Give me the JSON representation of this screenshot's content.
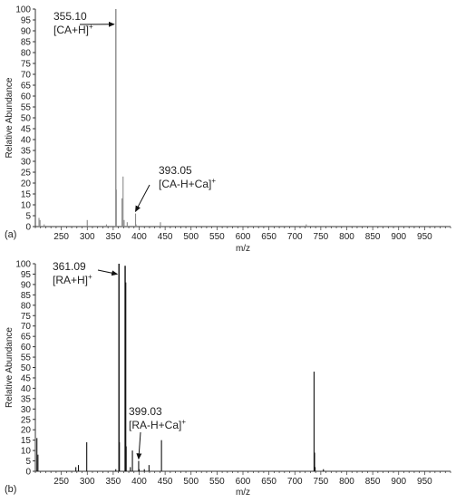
{
  "chart_data": [
    {
      "type": "bar",
      "panel_label": "(a)",
      "xlabel": "m/z",
      "ylabel": "Relative Abundance",
      "xlim": [
        200,
        1000
      ],
      "ylim": [
        0,
        100
      ],
      "xticks": [
        250,
        300,
        350,
        400,
        450,
        500,
        550,
        600,
        650,
        700,
        750,
        800,
        850,
        900,
        950
      ],
      "yticks": [
        0,
        5,
        10,
        15,
        20,
        25,
        30,
        35,
        40,
        45,
        50,
        55,
        60,
        65,
        70,
        75,
        80,
        85,
        90,
        95,
        100
      ],
      "bar_color": "#8a8a8a",
      "peaks": [
        {
          "mz": 207,
          "intensity": 4
        },
        {
          "mz": 209,
          "intensity": 3
        },
        {
          "mz": 217,
          "intensity": 1
        },
        {
          "mz": 300,
          "intensity": 3
        },
        {
          "mz": 337,
          "intensity": 1
        },
        {
          "mz": 355.1,
          "intensity": 100
        },
        {
          "mz": 356,
          "intensity": 17
        },
        {
          "mz": 367,
          "intensity": 13
        },
        {
          "mz": 369,
          "intensity": 23
        },
        {
          "mz": 371,
          "intensity": 3
        },
        {
          "mz": 377,
          "intensity": 2
        },
        {
          "mz": 393.05,
          "intensity": 6
        },
        {
          "mz": 394,
          "intensity": 1
        },
        {
          "mz": 441,
          "intensity": 2
        },
        {
          "mz": 722,
          "intensity": 1
        }
      ],
      "annotations": [
        {
          "mz_text": "355.10",
          "ion_base": "[CA+H]",
          "ion_sup": "+",
          "target_mz": 355.1,
          "target_int": 93
        },
        {
          "mz_text": "393.05",
          "ion_base": "[CA-H+Ca]",
          "ion_sup": "+",
          "target_mz": 393.05,
          "target_int": 7
        }
      ]
    },
    {
      "type": "bar",
      "panel_label": "(b)",
      "xlabel": "m/z",
      "ylabel": "Relative Abundance",
      "xlim": [
        200,
        1000
      ],
      "ylim": [
        0,
        100
      ],
      "xticks": [
        250,
        300,
        350,
        400,
        450,
        500,
        550,
        600,
        650,
        700,
        750,
        800,
        850,
        900,
        950
      ],
      "yticks": [
        0,
        5,
        10,
        15,
        20,
        25,
        30,
        35,
        40,
        45,
        50,
        55,
        60,
        65,
        70,
        75,
        80,
        85,
        90,
        95,
        100
      ],
      "bar_color": "#111111",
      "peaks": [
        {
          "mz": 203,
          "intensity": 16
        },
        {
          "mz": 205,
          "intensity": 8
        },
        {
          "mz": 278,
          "intensity": 2
        },
        {
          "mz": 283,
          "intensity": 3
        },
        {
          "mz": 299,
          "intensity": 14
        },
        {
          "mz": 355,
          "intensity": 1
        },
        {
          "mz": 361.09,
          "intensity": 100
        },
        {
          "mz": 362,
          "intensity": 14
        },
        {
          "mz": 373,
          "intensity": 99
        },
        {
          "mz": 374,
          "intensity": 91
        },
        {
          "mz": 375,
          "intensity": 12
        },
        {
          "mz": 383,
          "intensity": 2
        },
        {
          "mz": 387,
          "intensity": 10
        },
        {
          "mz": 399.03,
          "intensity": 5
        },
        {
          "mz": 400,
          "intensity": 1
        },
        {
          "mz": 410,
          "intensity": 1
        },
        {
          "mz": 419,
          "intensity": 3
        },
        {
          "mz": 443,
          "intensity": 15
        },
        {
          "mz": 737,
          "intensity": 48
        },
        {
          "mz": 738,
          "intensity": 9
        },
        {
          "mz": 739,
          "intensity": 2
        },
        {
          "mz": 755,
          "intensity": 1
        }
      ],
      "annotations": [
        {
          "mz_text": "361.09",
          "ion_base": "[RA+H]",
          "ion_sup": "+",
          "target_mz": 361.09,
          "target_int": 95
        },
        {
          "mz_text": "399.03",
          "ion_base": "[RA-H+Ca]",
          "ion_sup": "+",
          "target_mz": 399.03,
          "target_int": 6
        }
      ]
    }
  ]
}
